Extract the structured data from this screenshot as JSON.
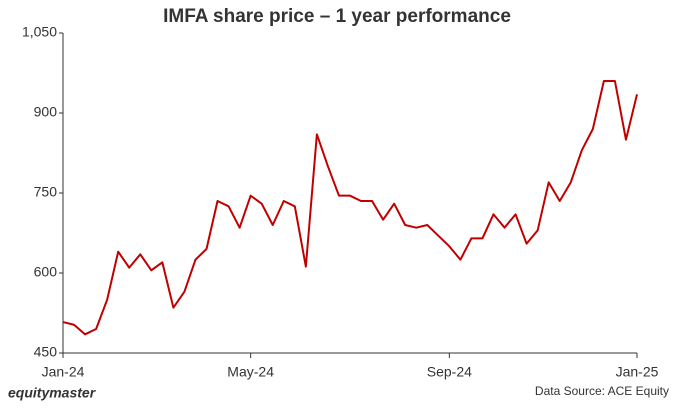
{
  "chart_data": {
    "type": "line",
    "title": "IMFA share price – 1 year performance",
    "categories": [
      "Jan-24",
      null,
      null,
      null,
      null,
      null,
      null,
      null,
      null,
      null,
      null,
      null,
      null,
      null,
      null,
      null,
      null,
      "May-24",
      null,
      null,
      null,
      null,
      null,
      null,
      null,
      null,
      null,
      null,
      null,
      null,
      null,
      null,
      null,
      null,
      null,
      "Sep-24",
      null,
      null,
      null,
      null,
      null,
      null,
      null,
      null,
      null,
      null,
      null,
      null,
      null,
      null,
      null,
      null,
      "Jan-25"
    ],
    "series": [
      {
        "name": "IMFA",
        "color": "#c00000",
        "values": [
          508,
          503,
          485,
          495,
          550,
          640,
          610,
          635,
          605,
          620,
          535,
          565,
          625,
          645,
          735,
          725,
          685,
          745,
          730,
          690,
          735,
          725,
          612,
          860,
          800,
          745,
          745,
          735,
          735,
          700,
          730,
          690,
          685,
          690,
          670,
          650,
          625,
          665,
          665,
          710,
          685,
          710,
          655,
          680,
          770,
          735,
          770,
          830,
          870,
          960,
          960,
          850,
          935
        ]
      }
    ],
    "ylim": [
      450,
      1050
    ],
    "yticks": [
      450,
      600,
      750,
      900,
      {
        "value": 1050,
        "label": "1,050"
      }
    ],
    "grid": false,
    "source": "Data Source: ACE Equity",
    "brand": "equitymaster"
  }
}
